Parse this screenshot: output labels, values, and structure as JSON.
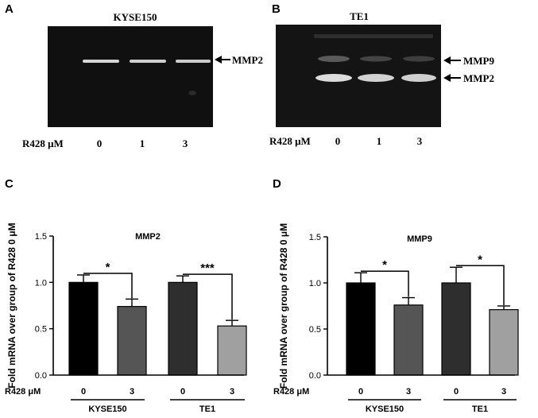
{
  "panel_letters": {
    "a": "A",
    "b": "B",
    "c": "C",
    "d": "D"
  },
  "colors": {
    "gel_background": "#101010",
    "gel_band": "#d8d8d8",
    "bar_kyse_0": "#000000",
    "bar_kyse_3": "#555555",
    "bar_te1_0": "#2e2e2e",
    "bar_te1_3": "#a0a0a0"
  },
  "gels": [
    {
      "title": "KYSE150",
      "band_labels": [
        "MMP2"
      ],
      "dose_label": "R428 μM",
      "doses": [
        "0",
        "1",
        "3"
      ]
    },
    {
      "title": "TE1",
      "band_labels": [
        "MMP9",
        "MMP2"
      ],
      "dose_label": "R428 μM",
      "doses": [
        "0",
        "1",
        "3"
      ]
    }
  ],
  "chart_data": [
    {
      "type": "bar",
      "title": "MMP2",
      "ylabel": "Fold mRNA over group of R428 0 μM",
      "xlabel": "",
      "ylim": [
        0,
        1.5
      ],
      "yticks": [
        "0.0",
        "0.5",
        "1.0",
        "1.5"
      ],
      "x_prefix": "R428 μM",
      "categories": [
        "0",
        "3",
        "0",
        "3"
      ],
      "groups": [
        "KYSE150",
        "TE1"
      ],
      "values": [
        1.0,
        0.74,
        1.0,
        0.53
      ],
      "errors": [
        0.08,
        0.08,
        0.07,
        0.06
      ],
      "significance": [
        "*",
        "***"
      ]
    },
    {
      "type": "bar",
      "title": "MMP9",
      "ylabel": "Fold mRNA over group of R428 0 μM",
      "xlabel": "",
      "ylim": [
        0,
        1.5
      ],
      "yticks": [
        "0.0",
        "0.5",
        "1.0",
        "1.5"
      ],
      "x_prefix": "R428 μM",
      "categories": [
        "0",
        "3",
        "0",
        "3"
      ],
      "groups": [
        "KYSE150",
        "TE1"
      ],
      "values": [
        1.0,
        0.76,
        1.0,
        0.71
      ],
      "errors": [
        0.11,
        0.08,
        0.17,
        0.04
      ],
      "significance": [
        "*",
        "*"
      ]
    }
  ]
}
